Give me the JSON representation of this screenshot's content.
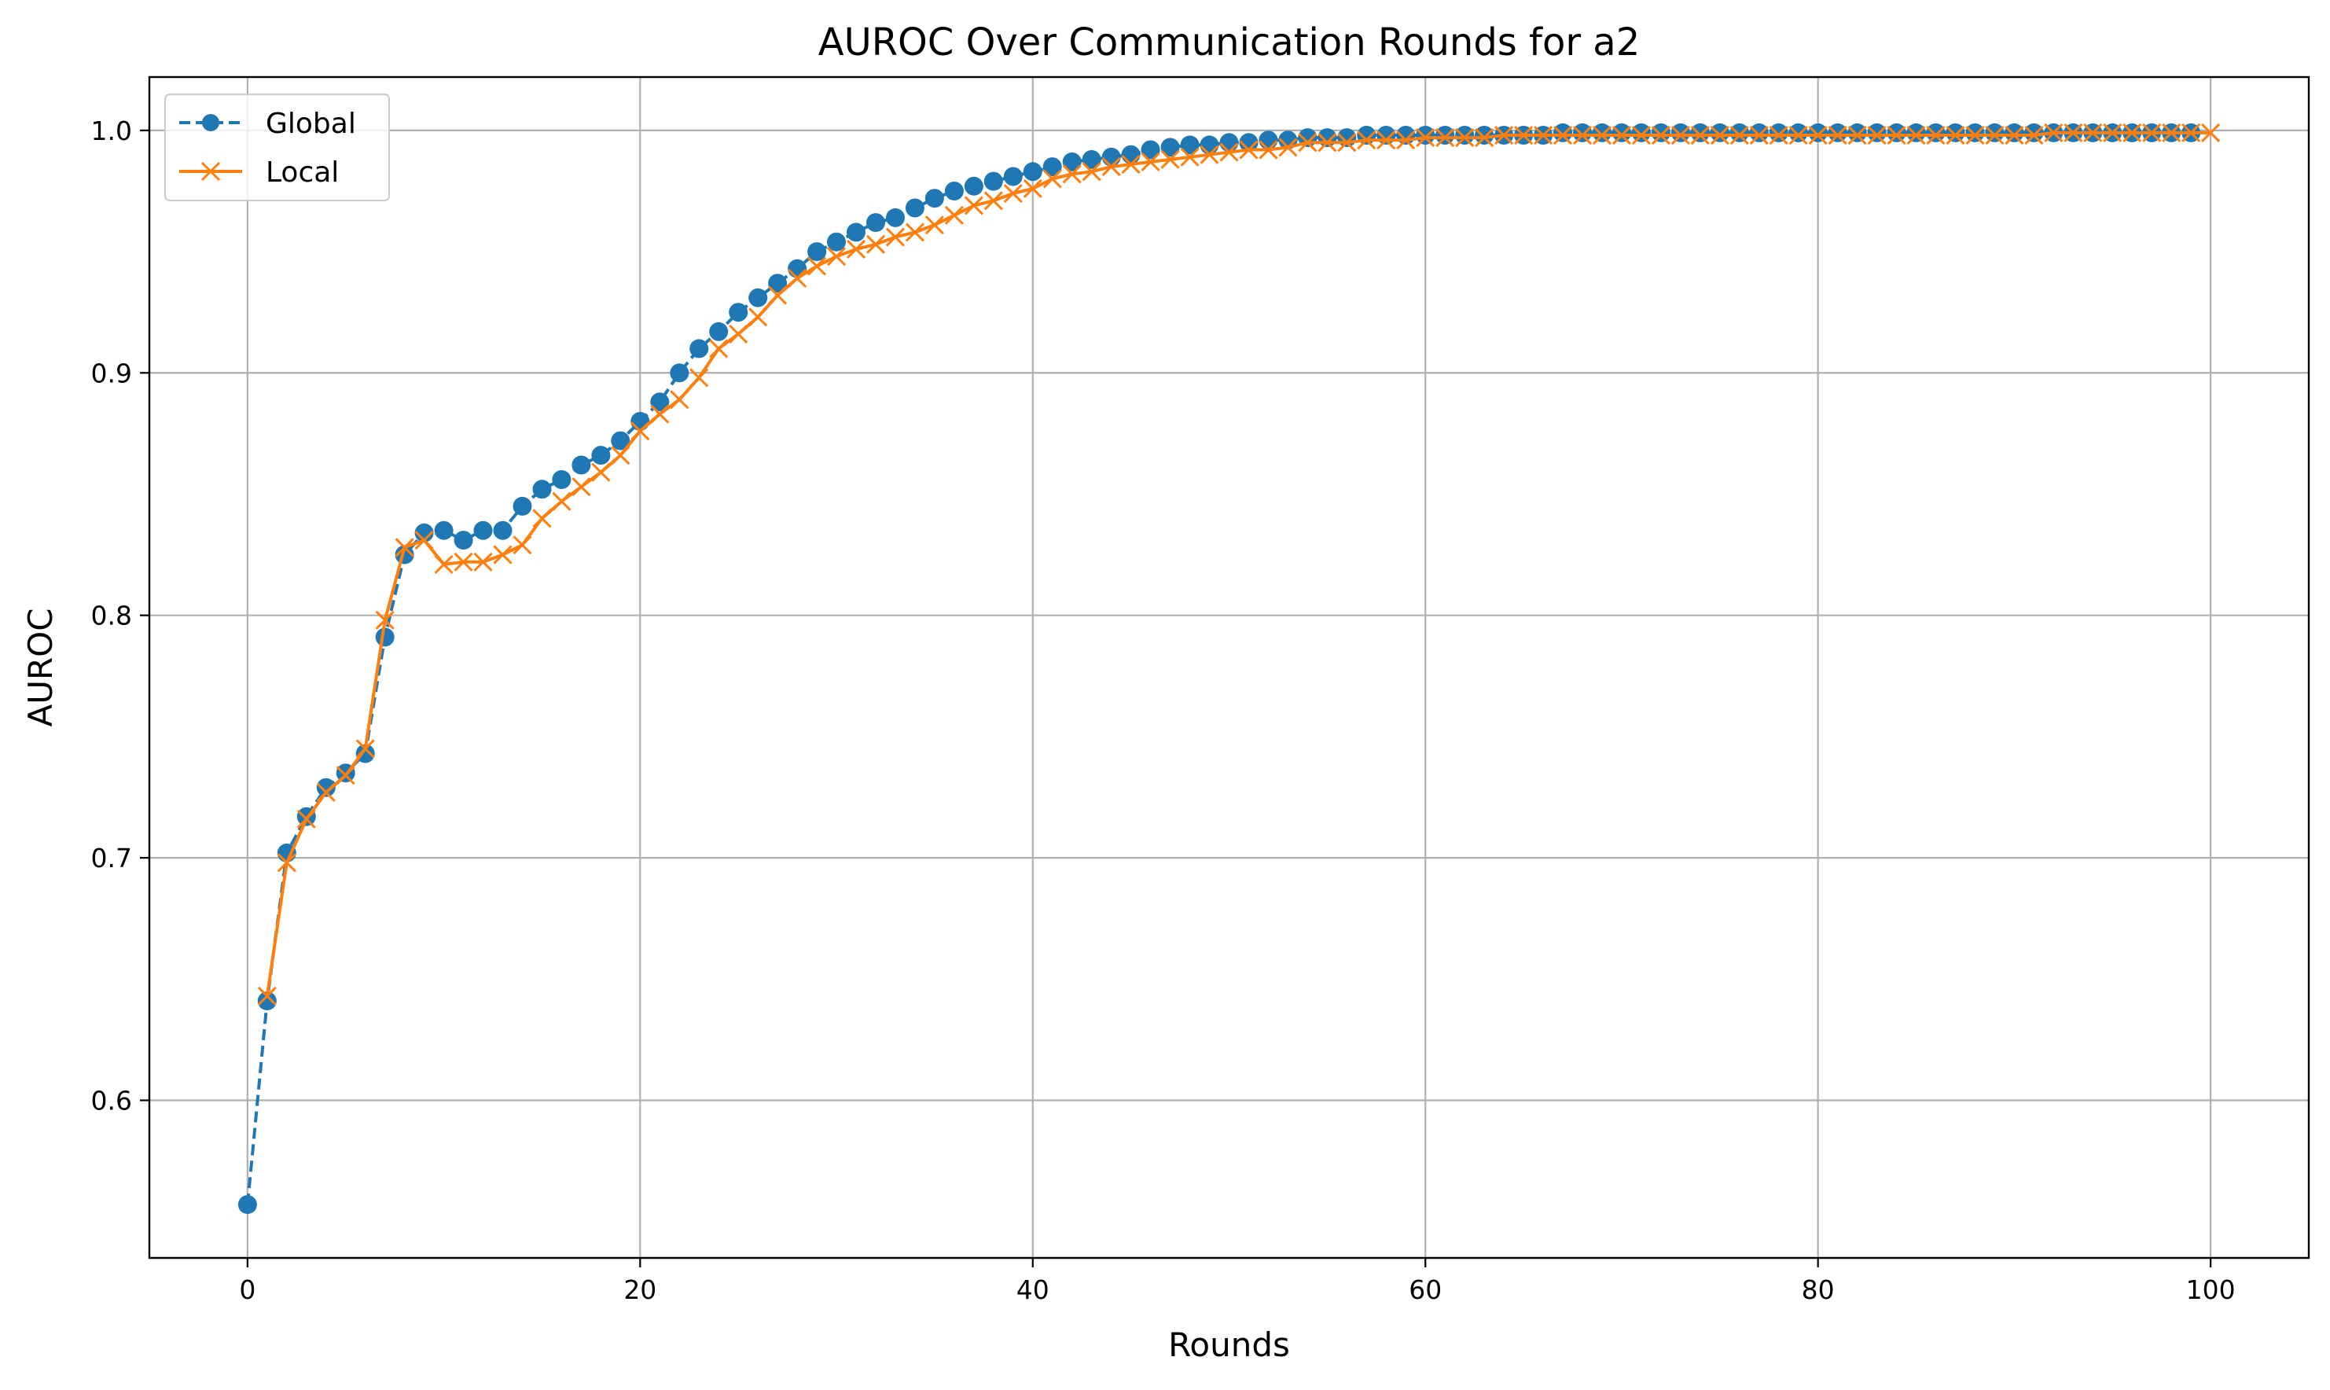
{
  "chart_data": {
    "type": "line",
    "title": "AUROC Over Communication Rounds for a2",
    "xlabel": "Rounds",
    "ylabel": "AUROC",
    "xlim": [
      -5,
      105
    ],
    "ylim": [
      0.535,
      1.022
    ],
    "x_ticks": [
      0,
      20,
      40,
      60,
      80,
      100
    ],
    "y_ticks": [
      0.6,
      0.7,
      0.8,
      0.9,
      1.0
    ],
    "x_tick_labels": [
      "0",
      "20",
      "40",
      "60",
      "80",
      "100"
    ],
    "y_tick_labels": [
      "0.6",
      "0.7",
      "0.8",
      "0.9",
      "1.0"
    ],
    "grid": true,
    "legend_position": "top-left",
    "series": [
      {
        "name": "Global",
        "color": "#1f77b4",
        "line_style": "dashed",
        "marker": "circle",
        "x_start": 0,
        "values": [
          0.557,
          0.641,
          0.702,
          0.717,
          0.729,
          0.735,
          0.743,
          0.791,
          0.825,
          0.834,
          0.835,
          0.831,
          0.835,
          0.835,
          0.845,
          0.852,
          0.856,
          0.862,
          0.866,
          0.872,
          0.88,
          0.888,
          0.9,
          0.91,
          0.917,
          0.925,
          0.931,
          0.937,
          0.943,
          0.95,
          0.954,
          0.958,
          0.962,
          0.964,
          0.968,
          0.972,
          0.975,
          0.977,
          0.979,
          0.981,
          0.983,
          0.985,
          0.987,
          0.988,
          0.989,
          0.99,
          0.992,
          0.993,
          0.994,
          0.994,
          0.995,
          0.995,
          0.996,
          0.996,
          0.997,
          0.997,
          0.997,
          0.998,
          0.998,
          0.998,
          0.998,
          0.998,
          0.998,
          0.998,
          0.998,
          0.998,
          0.998,
          0.999,
          0.999,
          0.999,
          0.999,
          0.999,
          0.999,
          0.999,
          0.999,
          0.999,
          0.999,
          0.999,
          0.999,
          0.999,
          0.999,
          0.999,
          0.999,
          0.999,
          0.999,
          0.999,
          0.999,
          0.999,
          0.999,
          0.999,
          0.999,
          0.999,
          0.999,
          0.999,
          0.999,
          0.999,
          0.999,
          0.999,
          0.999,
          0.999
        ]
      },
      {
        "name": "Local",
        "color": "#ff7f0e",
        "line_style": "solid",
        "marker": "x",
        "x_start": 1,
        "values": [
          0.643,
          0.698,
          0.716,
          0.727,
          0.734,
          0.745,
          0.798,
          0.828,
          0.831,
          0.821,
          0.822,
          0.822,
          0.825,
          0.829,
          0.84,
          0.847,
          0.853,
          0.859,
          0.866,
          0.876,
          0.883,
          0.889,
          0.898,
          0.91,
          0.916,
          0.923,
          0.932,
          0.939,
          0.944,
          0.948,
          0.951,
          0.953,
          0.956,
          0.958,
          0.961,
          0.965,
          0.969,
          0.971,
          0.974,
          0.976,
          0.98,
          0.982,
          0.983,
          0.985,
          0.986,
          0.987,
          0.988,
          0.989,
          0.99,
          0.991,
          0.992,
          0.992,
          0.993,
          0.995,
          0.995,
          0.995,
          0.996,
          0.996,
          0.996,
          0.997,
          0.997,
          0.997,
          0.997,
          0.998,
          0.998,
          0.998,
          0.998,
          0.998,
          0.998,
          0.998,
          0.998,
          0.998,
          0.998,
          0.998,
          0.998,
          0.998,
          0.998,
          0.998,
          0.998,
          0.998,
          0.998,
          0.998,
          0.998,
          0.998,
          0.998,
          0.998,
          0.998,
          0.998,
          0.998,
          0.998,
          0.998,
          0.999,
          0.999,
          0.999,
          0.999,
          0.999,
          0.999,
          0.999,
          0.999,
          0.999
        ]
      }
    ]
  }
}
